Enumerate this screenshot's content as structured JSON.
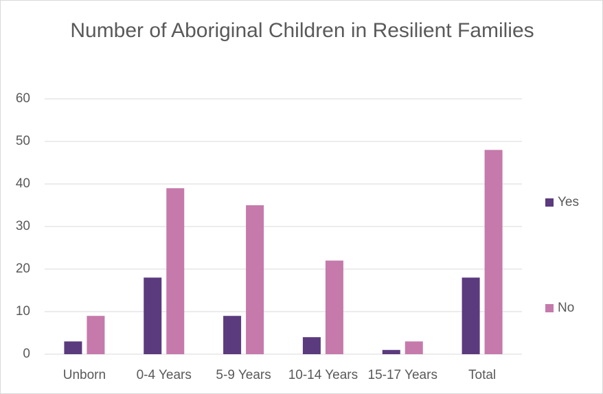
{
  "chart_data": {
    "type": "bar",
    "title": "Number of Aboriginal Children in Resilient Families",
    "categories": [
      "Unborn",
      "0-4 Years",
      "5-9 Years",
      "10-14 Years",
      "15-17 Years",
      "Total"
    ],
    "series": [
      {
        "name": "Yes",
        "color": "#5b3a7e",
        "values": [
          3,
          18,
          9,
          4,
          1,
          18
        ]
      },
      {
        "name": "No",
        "color": "#c57aab",
        "values": [
          9,
          39,
          35,
          22,
          3,
          48
        ]
      }
    ],
    "ylim": [
      0,
      60
    ],
    "yticks": [
      0,
      10,
      20,
      30,
      40,
      50,
      60
    ],
    "grid": true,
    "legend": "right"
  }
}
